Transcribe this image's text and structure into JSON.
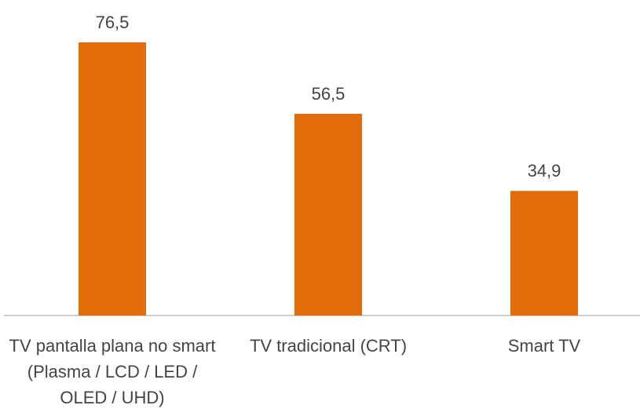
{
  "chart_data": {
    "type": "bar",
    "categories": [
      "TV pantalla plana no smart (Plasma / LCD / LED / OLED / UHD)",
      "TV tradicional (CRT)",
      "Smart TV"
    ],
    "values": [
      76.5,
      56.5,
      34.9
    ],
    "value_labels": [
      "76,5",
      "56,5",
      "34,9"
    ],
    "color": "#e36c0a"
  }
}
